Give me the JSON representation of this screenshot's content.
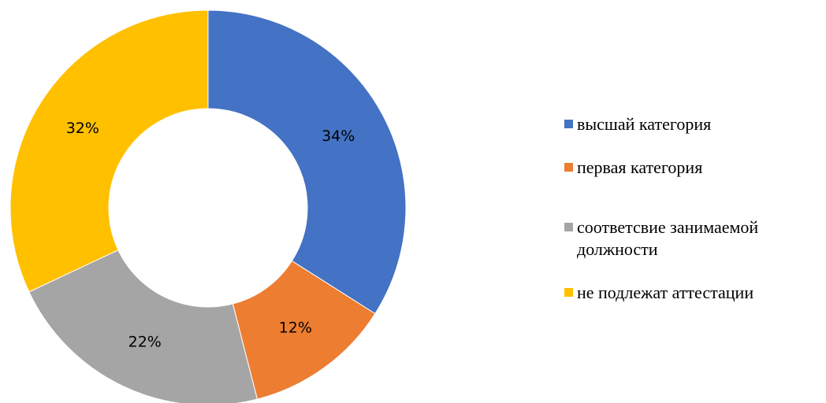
{
  "colors": {
    "high_category": "#4472C4",
    "first_category": "#ED7D31",
    "position_compliance": "#A5A5A5",
    "not_subject": "#FFC000"
  },
  "chart_data": {
    "type": "pie",
    "variant": "donut",
    "title": "",
    "legend_position": "right",
    "categories": [
      "высшай категория",
      "первая категория",
      "соответсвие занимаемой должности",
      "не подлежат аттестации"
    ],
    "values": [
      34,
      12,
      22,
      32
    ],
    "labels": [
      "34%",
      "12%",
      "22%",
      "32%"
    ],
    "colors": [
      "#4472C4",
      "#ED7D31",
      "#A5A5A5",
      "#FFC000"
    ]
  }
}
